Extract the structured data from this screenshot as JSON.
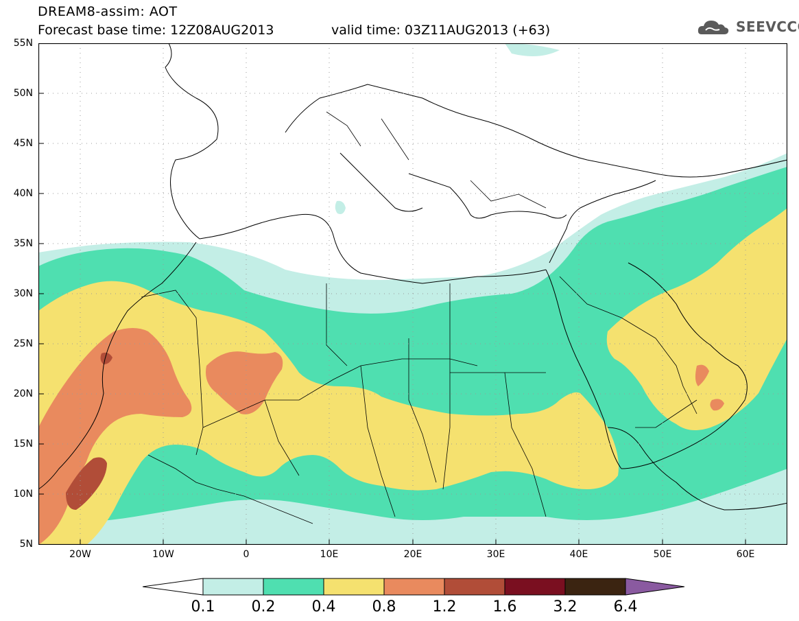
{
  "title": {
    "line1": "DREAM8-assim: AOT",
    "base_time": "Forecast base time: 12Z08AUG2013",
    "valid_time": "valid time: 03Z11AUG2013 (+63)"
  },
  "logo": {
    "text": "SEEVCCC",
    "icon": "cloud-icon"
  },
  "map": {
    "variable": "Aerosol optical thickness",
    "lat_labels": [
      "55N",
      "50N",
      "45N",
      "40N",
      "35N",
      "30N",
      "25N",
      "20N",
      "15N",
      "10N",
      "5N"
    ],
    "lon_labels": [
      "20W",
      "10W",
      "0",
      "10E",
      "20E",
      "30E",
      "40E",
      "50E",
      "60E"
    ],
    "extent": {
      "lon_min": -25,
      "lon_max": 65,
      "lat_min": 5,
      "lat_max": 55
    },
    "grid": "dotted"
  },
  "legend": {
    "labels": [
      "0.1",
      "0.2",
      "0.4",
      "0.8",
      "1.2",
      "1.6",
      "3.2",
      "6.4"
    ],
    "colors": [
      "#ffffff",
      "#c3eee6",
      "#4fdfb0",
      "#f5e16f",
      "#e98a5e",
      "#b14d38",
      "#7a0f20",
      "#3b2411",
      "#8a5aa0"
    ]
  },
  "colors": {
    "level_0_1": "#c3eee6",
    "level_0_2": "#4fdfb0",
    "level_0_4": "#f5e16f",
    "level_0_8": "#e98a5e",
    "level_1_2": "#b14d38"
  }
}
